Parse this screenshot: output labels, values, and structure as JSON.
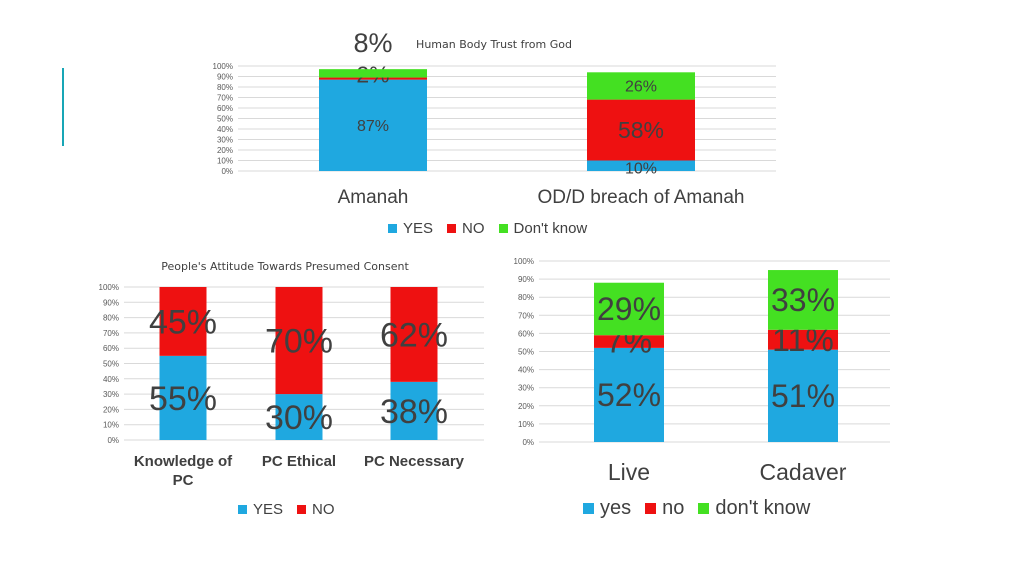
{
  "colors": {
    "yes": "#1fa8e0",
    "no": "#ee1111",
    "dontknow": "#44e022",
    "accent": "#18a6b6",
    "grid": "#d9d9d9",
    "text": "#404040"
  },
  "chart_data": [
    {
      "type": "bar",
      "stacked": true,
      "title": "Human Body Trust from God",
      "categories": [
        "Amanah",
        "OD/D breach of Amanah"
      ],
      "series": [
        {
          "name": "YES",
          "values": [
            87,
            10
          ],
          "labels": [
            "87%",
            "10%"
          ]
        },
        {
          "name": "NO",
          "values": [
            2,
            58
          ],
          "labels": [
            "2%",
            "58%"
          ]
        },
        {
          "name": "Don't know",
          "values": [
            8,
            26
          ],
          "labels": [
            "8%",
            "26%"
          ]
        }
      ],
      "ylim": [
        0,
        100
      ],
      "yticks": [
        "0%",
        "10%",
        "20%",
        "30%",
        "40%",
        "50%",
        "60%",
        "70%",
        "80%",
        "90%",
        "100%"
      ],
      "grid": true,
      "legend": "bottom"
    },
    {
      "type": "bar",
      "stacked": true,
      "title": "People's Attitude Towards Presumed Consent",
      "categories": [
        "Knowledge of PC",
        "PC Ethical",
        "PC Necessary"
      ],
      "series": [
        {
          "name": "YES",
          "values": [
            55,
            30,
            38
          ],
          "labels": [
            "55%",
            "30%",
            "38%"
          ]
        },
        {
          "name": "NO",
          "values": [
            45,
            70,
            62
          ],
          "labels": [
            "45%",
            "70%",
            "62%"
          ]
        }
      ],
      "ylim": [
        0,
        100
      ],
      "yticks": [
        "0%",
        "10%",
        "20%",
        "30%",
        "40%",
        "50%",
        "60%",
        "70%",
        "80%",
        "90%",
        "100%"
      ],
      "grid": true,
      "legend": "bottom"
    },
    {
      "type": "bar",
      "stacked": true,
      "title": "",
      "categories": [
        "Live",
        "Cadaver"
      ],
      "series": [
        {
          "name": "yes",
          "values": [
            52,
            51
          ],
          "labels": [
            "52%",
            "51%"
          ]
        },
        {
          "name": "no",
          "values": [
            7,
            11
          ],
          "labels": [
            "7%",
            "11%"
          ]
        },
        {
          "name": "don't know",
          "values": [
            29,
            33
          ],
          "labels": [
            "29%",
            "33%"
          ]
        }
      ],
      "ylim": [
        0,
        100
      ],
      "yticks": [
        "0%",
        "10%",
        "20%",
        "30%",
        "40%",
        "50%",
        "60%",
        "70%",
        "80%",
        "90%",
        "100%"
      ],
      "grid": true,
      "legend": "bottom"
    }
  ]
}
